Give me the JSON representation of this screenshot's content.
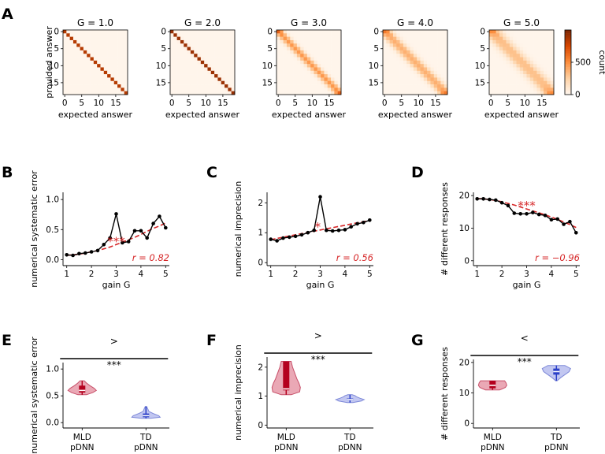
{
  "panel_labels": [
    "A",
    "B",
    "C",
    "D",
    "E",
    "F",
    "G"
  ],
  "chart_data": [
    {
      "panel": "A",
      "type": "heatmap",
      "matrix_size": 19,
      "x_ticks": [
        "0",
        "5",
        "10",
        "15"
      ],
      "y_ticks": [
        "0",
        "5",
        "10",
        "15"
      ],
      "xlabel": "expected answer",
      "ylabel": "provided answer",
      "titles": [
        "G = 1.0",
        "G = 2.0",
        "G = 3.0",
        "G = 4.0",
        "G = 5.0"
      ],
      "spreads": [
        0.0,
        0.35,
        1.0,
        1.35,
        1.8
      ],
      "colorbar": {
        "label": "count",
        "ticks": [
          "0",
          "500"
        ],
        "tick_values": [
          0,
          500
        ],
        "max": 1000
      }
    },
    {
      "panel": "B",
      "type": "line",
      "x": [
        1.0,
        1.25,
        1.5,
        1.75,
        2.0,
        2.25,
        2.5,
        2.75,
        3.0,
        3.25,
        3.5,
        3.75,
        4.0,
        4.25,
        4.5,
        4.75,
        5.0
      ],
      "y": [
        0.08,
        0.07,
        0.1,
        0.11,
        0.13,
        0.15,
        0.25,
        0.36,
        0.76,
        0.28,
        0.3,
        0.48,
        0.48,
        0.36,
        0.6,
        0.72,
        0.53
      ],
      "fit": [
        0.07,
        0.08,
        0.09,
        0.11,
        0.13,
        0.15,
        0.18,
        0.21,
        0.25,
        0.29,
        0.33,
        0.37,
        0.42,
        0.47,
        0.52,
        0.56,
        0.61
      ],
      "xlim": [
        0.85,
        5.15
      ],
      "ylim": [
        -0.1,
        1.12
      ],
      "xticks": [
        "1",
        "2",
        "3",
        "4",
        "5"
      ],
      "yticks": [
        "0.0",
        "0.5",
        "1.0"
      ],
      "xlabel": "gain G",
      "ylabel": "numerical systematic error",
      "r_label": "r = 0.82",
      "sig": "***",
      "sig_x": 3.0
    },
    {
      "panel": "C",
      "type": "line",
      "x": [
        1.0,
        1.25,
        1.5,
        1.75,
        2.0,
        2.25,
        2.5,
        2.75,
        3.0,
        3.25,
        3.5,
        3.75,
        4.0,
        4.25,
        4.5,
        4.75,
        5.0
      ],
      "y": [
        0.78,
        0.73,
        0.82,
        0.85,
        0.88,
        0.93,
        1.0,
        1.08,
        2.2,
        1.08,
        1.06,
        1.08,
        1.1,
        1.2,
        1.3,
        1.34,
        1.42
      ],
      "fit": [
        0.77,
        0.81,
        0.85,
        0.89,
        0.93,
        0.97,
        1.01,
        1.05,
        1.09,
        1.13,
        1.17,
        1.21,
        1.25,
        1.29,
        1.33,
        1.37,
        1.41
      ],
      "xlim": [
        0.85,
        5.15
      ],
      "ylim": [
        -0.1,
        2.35
      ],
      "xticks": [
        "1",
        "2",
        "3",
        "4",
        "5"
      ],
      "yticks": [
        "0",
        "1",
        "2"
      ],
      "xlabel": "gain G",
      "ylabel": "numerical imprecision",
      "r_label": "r = 0.56",
      "sig": "*",
      "sig_x": 2.9
    },
    {
      "panel": "D",
      "type": "line",
      "x": [
        1.0,
        1.25,
        1.5,
        1.75,
        2.0,
        2.25,
        2.5,
        2.75,
        3.0,
        3.25,
        3.5,
        3.75,
        4.0,
        4.25,
        4.5,
        4.75,
        5.0
      ],
      "y": [
        19.0,
        19.0,
        18.8,
        18.6,
        17.8,
        16.9,
        14.6,
        14.4,
        14.4,
        14.8,
        14.2,
        13.9,
        12.6,
        12.8,
        11.2,
        12.0,
        8.6
      ],
      "fit": [
        19.1,
        19.0,
        18.8,
        18.5,
        18.1,
        17.6,
        17.1,
        16.5,
        15.9,
        15.3,
        14.7,
        14.1,
        13.4,
        12.7,
        11.9,
        11.1,
        10.2
      ],
      "xlim": [
        0.85,
        5.15
      ],
      "ylim": [
        -1.5,
        21.0
      ],
      "xticks": [
        "1",
        "2",
        "3",
        "4",
        "5"
      ],
      "yticks": [
        "0",
        "10",
        "20"
      ],
      "xlabel": "gain G",
      "ylabel": "# different responses",
      "r_label": "r = −0.96",
      "sig": "***",
      "sig_x": 3.0
    },
    {
      "panel": "E",
      "type": "violin",
      "categories": [
        "MLD pDNN",
        "TD pDNN"
      ],
      "ylabel": "numerical systematic error",
      "ylim": [
        -0.1,
        1.12
      ],
      "yticks": [
        "0.0",
        "0.5",
        "1.0"
      ],
      "comparison": ">",
      "sig": "***",
      "groups": [
        {
          "name": "MLD pDNN",
          "min": 0.52,
          "max": 0.78,
          "q1": 0.56,
          "median": 0.6,
          "q3": 0.69,
          "shape": [
            [
              0.52,
              0.3
            ],
            [
              0.56,
              0.75
            ],
            [
              0.6,
              1.0
            ],
            [
              0.64,
              0.85
            ],
            [
              0.69,
              0.55
            ],
            [
              0.74,
              0.3
            ],
            [
              0.78,
              0.15
            ]
          ]
        },
        {
          "name": "TD pDNN",
          "min": 0.08,
          "max": 0.3,
          "q1": 0.1,
          "median": 0.13,
          "q3": 0.17,
          "shape": [
            [
              0.08,
              0.3
            ],
            [
              0.1,
              1.0
            ],
            [
              0.13,
              0.9
            ],
            [
              0.17,
              0.5
            ],
            [
              0.21,
              0.2
            ],
            [
              0.26,
              0.12
            ],
            [
              0.3,
              0.05
            ]
          ]
        }
      ]
    },
    {
      "panel": "F",
      "type": "violin",
      "categories": [
        "MLD pDNN",
        "TD pDNN"
      ],
      "ylabel": "numerical imprecision",
      "ylim": [
        -0.1,
        2.35
      ],
      "yticks": [
        "0",
        "1",
        "2"
      ],
      "comparison": ">",
      "sig": "***",
      "groups": [
        {
          "name": "MLD pDNN",
          "min": 1.05,
          "max": 2.2,
          "q1": 1.2,
          "median": 1.25,
          "q3": 2.2,
          "shape": [
            [
              1.05,
              0.35
            ],
            [
              1.15,
              0.95
            ],
            [
              1.3,
              1.0
            ],
            [
              1.45,
              0.9
            ],
            [
              1.6,
              0.75
            ],
            [
              1.8,
              0.6
            ],
            [
              2.0,
              0.45
            ],
            [
              2.2,
              0.35
            ]
          ]
        },
        {
          "name": "TD pDNN",
          "min": 0.78,
          "max": 1.05,
          "q1": 0.85,
          "median": 0.88,
          "q3": 0.92,
          "shape": [
            [
              0.78,
              0.2
            ],
            [
              0.83,
              0.8
            ],
            [
              0.88,
              1.0
            ],
            [
              0.93,
              0.7
            ],
            [
              0.98,
              0.45
            ],
            [
              1.02,
              0.35
            ],
            [
              1.05,
              0.15
            ]
          ]
        }
      ]
    },
    {
      "panel": "G",
      "type": "violin",
      "categories": [
        "MLD pDNN",
        "TD pDNN"
      ],
      "ylabel": "# different responses",
      "ylim": [
        -1.5,
        21.0
      ],
      "yticks": [
        "0",
        "10",
        "20"
      ],
      "comparison": "<",
      "sig": "***",
      "groups": [
        {
          "name": "MLD pDNN",
          "min": 11.0,
          "max": 14.0,
          "q1": 11.5,
          "median": 12.5,
          "q3": 14.0,
          "shape": [
            [
              11.0,
              0.5
            ],
            [
              11.8,
              0.9
            ],
            [
              12.5,
              1.0
            ],
            [
              13.3,
              0.95
            ],
            [
              14.0,
              0.85
            ]
          ]
        },
        {
          "name": "TD pDNN",
          "min": 14.0,
          "max": 19.0,
          "q1": 16.0,
          "median": 17.0,
          "q3": 18.0,
          "shape": [
            [
              14.0,
              0.05
            ],
            [
              15.0,
              0.3
            ],
            [
              16.0,
              0.6
            ],
            [
              17.0,
              0.9
            ],
            [
              18.0,
              1.0
            ],
            [
              19.0,
              0.6
            ]
          ]
        }
      ]
    }
  ]
}
